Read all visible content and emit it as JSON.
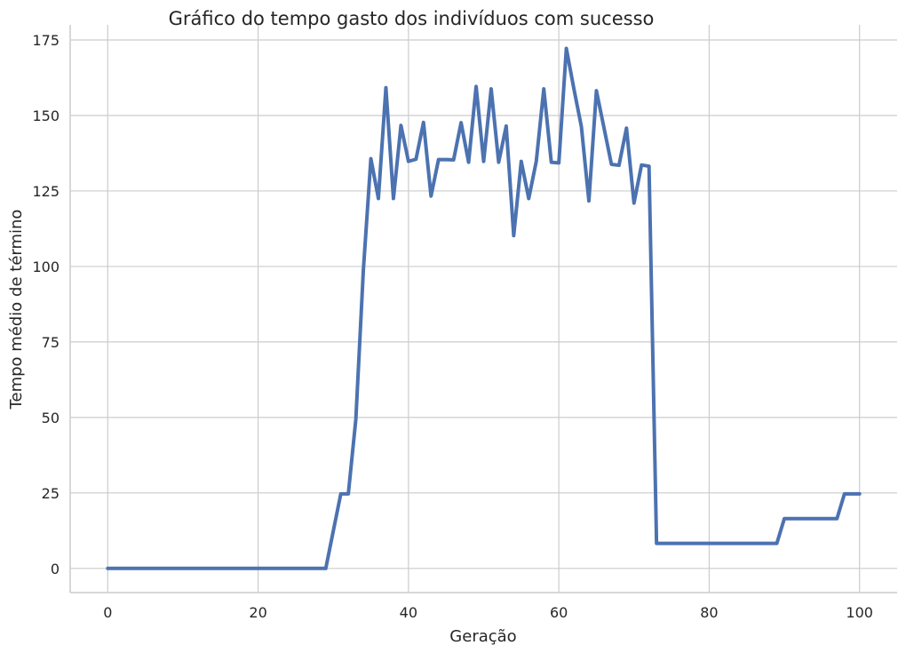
{
  "chart_data": {
    "type": "line",
    "title": "Gráfico do tempo gasto dos indivíduos com sucesso",
    "xlabel": "Geração",
    "ylabel": "Tempo médio de término",
    "xlim": [
      -5,
      105
    ],
    "ylim": [
      -8,
      180
    ],
    "xticks": [
      0,
      20,
      40,
      60,
      80,
      100
    ],
    "yticks": [
      0,
      25,
      50,
      75,
      100,
      125,
      150,
      175
    ],
    "grid": true,
    "series": [
      {
        "color": "#4c72b0",
        "x": [
          0,
          1,
          2,
          3,
          4,
          5,
          6,
          7,
          8,
          9,
          10,
          11,
          12,
          13,
          14,
          15,
          16,
          17,
          18,
          19,
          20,
          21,
          22,
          23,
          24,
          25,
          26,
          27,
          28,
          29,
          30,
          31,
          32,
          33,
          34,
          35,
          36,
          37,
          38,
          39,
          40,
          41,
          42,
          43,
          44,
          45,
          46,
          47,
          48,
          49,
          50,
          51,
          52,
          53,
          54,
          55,
          56,
          57,
          58,
          59,
          60,
          61,
          62,
          63,
          64,
          65,
          66,
          67,
          68,
          69,
          70,
          71,
          72,
          73,
          74,
          75,
          76,
          77,
          78,
          79,
          80,
          81,
          82,
          83,
          84,
          85,
          86,
          87,
          88,
          89,
          90,
          91,
          92,
          93,
          94,
          95,
          96,
          97,
          98,
          99,
          100
        ],
        "y": [
          0,
          0,
          0,
          0,
          0,
          0,
          0,
          0,
          0,
          0,
          0,
          0,
          0,
          0,
          0,
          0,
          0,
          0,
          0,
          0,
          0,
          0,
          0,
          0,
          0,
          0,
          0,
          0,
          0,
          0,
          12.4,
          24.7,
          24.7,
          49.4,
          98.8,
          135.7,
          122.5,
          159.2,
          122.5,
          146.7,
          134.8,
          135.5,
          147.7,
          123.3,
          135.4,
          135.4,
          135.3,
          147.6,
          134.5,
          159.6,
          134.8,
          158.8,
          134.5,
          146.5,
          110.2,
          134.8,
          122.5,
          134.8,
          158.8,
          134.5,
          134.3,
          172.2,
          158.9,
          146.3,
          121.7,
          158.2,
          146.0,
          133.8,
          133.5,
          145.8,
          121.0,
          133.6,
          133.2,
          8.3,
          8.3,
          8.3,
          8.3,
          8.3,
          8.3,
          8.3,
          8.3,
          8.3,
          8.3,
          8.3,
          8.3,
          8.3,
          8.3,
          8.3,
          8.3,
          8.3,
          16.5,
          16.5,
          16.5,
          16.5,
          16.5,
          16.5,
          16.5,
          16.5,
          24.7,
          24.7,
          24.7
        ]
      }
    ]
  }
}
